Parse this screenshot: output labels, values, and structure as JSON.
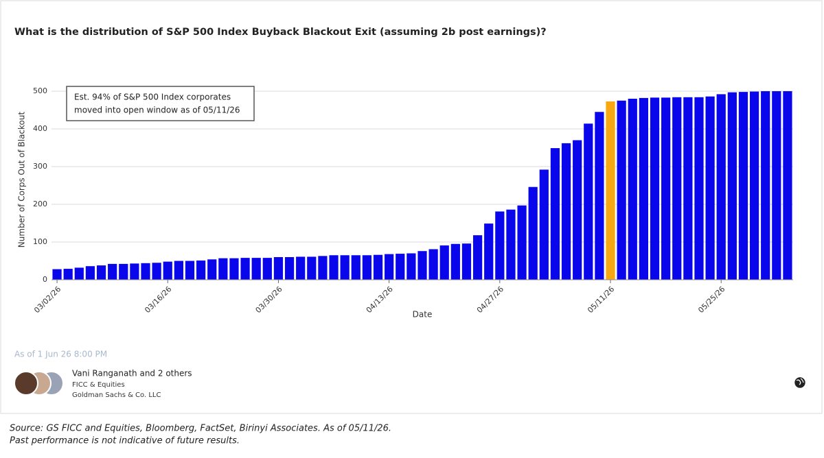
{
  "chart_data": {
    "type": "bar",
    "title": "What is the distribution of S&P 500 Index Buyback Blackout Exit (assuming 2b post earnings)?",
    "x_label": "Date",
    "y_label": "Number of Corps Out of Blackout",
    "annotation": [
      "Est. 94% of S&P 500 Index corporates",
      "moved into open window as of 05/11/26"
    ],
    "categories": [
      "03/02/26",
      null,
      null,
      null,
      null,
      null,
      null,
      null,
      null,
      null,
      "03/16/26",
      null,
      null,
      null,
      null,
      null,
      null,
      null,
      null,
      null,
      "03/30/26",
      null,
      null,
      null,
      null,
      null,
      null,
      null,
      null,
      null,
      "04/13/26",
      null,
      null,
      null,
      null,
      null,
      null,
      null,
      null,
      null,
      "04/27/26",
      null,
      null,
      null,
      null,
      null,
      null,
      null,
      null,
      null,
      "05/11/26",
      null,
      null,
      null,
      null,
      null,
      null,
      null,
      null,
      null,
      "05/25/26",
      null,
      null,
      null,
      null,
      null,
      null
    ],
    "values": [
      28,
      29,
      32,
      36,
      38,
      42,
      42,
      43,
      44,
      45,
      48,
      50,
      50,
      51,
      54,
      57,
      57,
      58,
      58,
      58,
      60,
      60,
      61,
      61,
      63,
      65,
      65,
      65,
      65,
      66,
      68,
      69,
      70,
      76,
      81,
      91,
      95,
      96,
      118,
      149,
      181,
      186,
      197,
      246,
      292,
      349,
      362,
      370,
      414,
      445,
      473,
      475,
      480,
      482,
      483,
      483,
      484,
      484,
      484,
      486,
      492,
      497,
      498,
      499,
      500,
      500,
      500
    ],
    "color": "#0a06ec",
    "highlight_index": 50,
    "highlight_color": "#f7a712",
    "ylim": [
      0,
      500
    ],
    "yticks": [
      0,
      100,
      200,
      300,
      400,
      500
    ],
    "grid": true
  },
  "timestamp": "As of 1 Jun 26 8:00 PM",
  "author": {
    "name": "Vani Ranganath and 2 others",
    "team": "FICC & Equities",
    "firm": "Goldman Sachs & Co. LLC"
  },
  "source": [
    "Source: GS FICC and Equities, Bloomberg, FactSet, Birinyi Associates. As of 05/11/26.",
    "Past performance is not indicative of future results."
  ]
}
